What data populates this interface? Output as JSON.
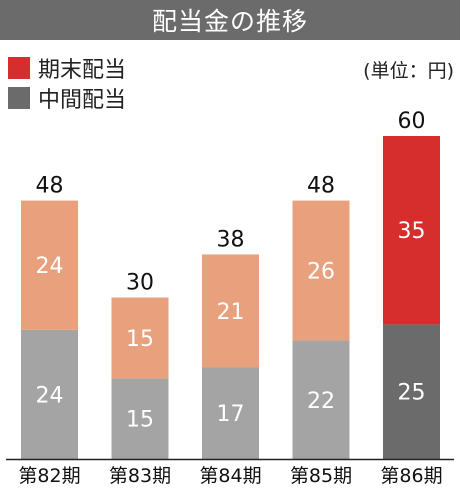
{
  "header": {
    "title": "配当金の推移"
  },
  "legend": {
    "items": [
      {
        "label": "期末配当",
        "color": "#d62d2d"
      },
      {
        "label": "中間配当",
        "color": "#6b6b6b"
      }
    ]
  },
  "unit": "(単位：円)",
  "chart_data": {
    "type": "bar",
    "stacked": true,
    "title": "配当金の推移",
    "categories": [
      "第82期",
      "第83期",
      "第84期",
      "第85期",
      "第86期"
    ],
    "series": [
      {
        "name": "中間配当",
        "values": [
          24,
          15,
          17,
          22,
          25
        ]
      },
      {
        "name": "期末配当",
        "values": [
          24,
          15,
          21,
          26,
          35
        ]
      }
    ],
    "totals": [
      48,
      30,
      38,
      48,
      60
    ],
    "colors": {
      "interim_past": "#a4a4a4",
      "interim_latest": "#6b6b6b",
      "yearend_past": "#e8a07d",
      "yearend_latest": "#d62d2d",
      "value_label": "#ffffff",
      "total_label": "#111111",
      "axis": "#222222"
    },
    "xlabel": "",
    "ylabel": "",
    "ylim": [
      0,
      60
    ],
    "grid": false,
    "legend_position": "top-left"
  }
}
